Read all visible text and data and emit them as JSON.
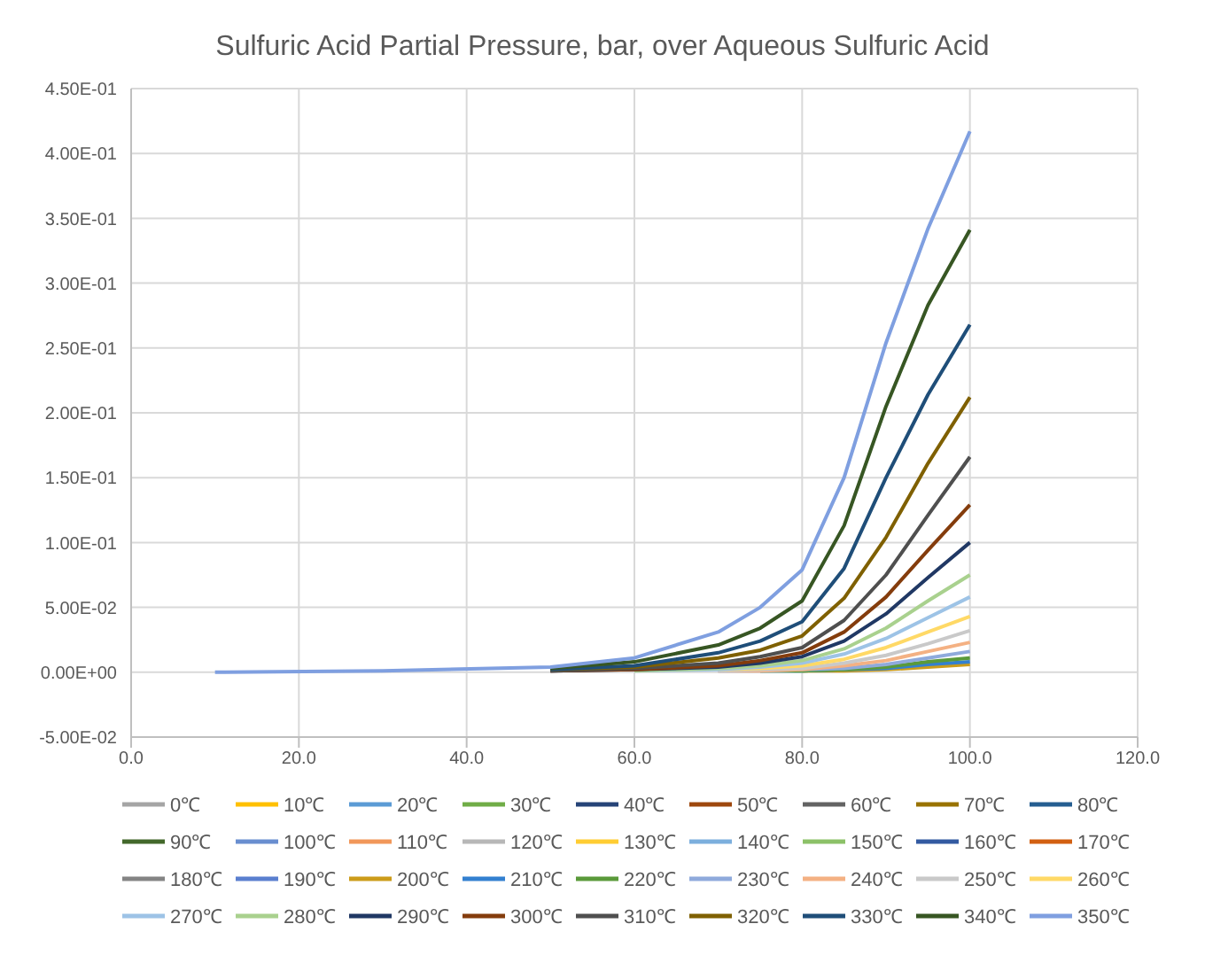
{
  "chart_data": {
    "type": "line",
    "title": "Sulfuric Acid Partial Pressure, bar, over Aqueous Sulfuric Acid",
    "x": [
      10,
      30,
      50,
      60,
      70,
      75,
      80,
      85,
      90,
      95,
      100
    ],
    "xlim": [
      0,
      120
    ],
    "xticks": [
      {
        "value": 0,
        "label": "0.0"
      },
      {
        "value": 20,
        "label": "20.0"
      },
      {
        "value": 40,
        "label": "40.0"
      },
      {
        "value": 60,
        "label": "60.0"
      },
      {
        "value": 80,
        "label": "80.0"
      },
      {
        "value": 100,
        "label": "100.0"
      },
      {
        "value": 120,
        "label": "120.0"
      }
    ],
    "ylim": [
      -0.05,
      0.45
    ],
    "yticks": [
      {
        "value": -0.05,
        "label": "-5.00E-02"
      },
      {
        "value": 0,
        "label": "0.00E+00"
      },
      {
        "value": 0.05,
        "label": "5.00E-02"
      },
      {
        "value": 0.1,
        "label": "1.00E-01"
      },
      {
        "value": 0.15,
        "label": "1.50E-01"
      },
      {
        "value": 0.2,
        "label": "2.00E-01"
      },
      {
        "value": 0.25,
        "label": "2.50E-01"
      },
      {
        "value": 0.3,
        "label": "3.00E-01"
      },
      {
        "value": 0.35,
        "label": "3.50E-01"
      },
      {
        "value": 0.4,
        "label": "4.00E-01"
      },
      {
        "value": 0.45,
        "label": "4.50E-01"
      }
    ],
    "grid": true,
    "legend": "bottom",
    "marker": "none",
    "line_style": "solid",
    "series": [
      {
        "name": "0℃",
        "color": "#a5a5a5",
        "values": [
          null,
          null,
          null,
          null,
          null,
          null,
          null,
          null,
          null,
          null,
          null
        ]
      },
      {
        "name": "10℃",
        "color": "#ffc000",
        "values": [
          null,
          null,
          null,
          null,
          null,
          null,
          null,
          null,
          null,
          null,
          null
        ]
      },
      {
        "name": "20℃",
        "color": "#5b9bd5",
        "values": [
          null,
          null,
          null,
          null,
          null,
          null,
          null,
          null,
          null,
          null,
          null
        ]
      },
      {
        "name": "30℃",
        "color": "#70ad47",
        "values": [
          null,
          null,
          null,
          null,
          null,
          null,
          null,
          null,
          null,
          null,
          null
        ]
      },
      {
        "name": "40℃",
        "color": "#264478",
        "values": [
          null,
          null,
          null,
          null,
          null,
          null,
          null,
          null,
          null,
          null,
          null
        ]
      },
      {
        "name": "50℃",
        "color": "#9e480e",
        "values": [
          null,
          null,
          null,
          null,
          null,
          null,
          null,
          null,
          null,
          null,
          null
        ]
      },
      {
        "name": "60℃",
        "color": "#636363",
        "values": [
          null,
          null,
          null,
          null,
          null,
          null,
          null,
          null,
          null,
          null,
          null
        ]
      },
      {
        "name": "70℃",
        "color": "#997300",
        "values": [
          null,
          null,
          null,
          null,
          null,
          null,
          null,
          null,
          null,
          null,
          null
        ]
      },
      {
        "name": "80℃",
        "color": "#255e91",
        "values": [
          null,
          null,
          null,
          null,
          null,
          null,
          null,
          null,
          null,
          null,
          null
        ]
      },
      {
        "name": "90℃",
        "color": "#43682b",
        "values": [
          null,
          null,
          null,
          null,
          null,
          null,
          null,
          null,
          null,
          null,
          null
        ]
      },
      {
        "name": "100℃",
        "color": "#698ed0",
        "values": [
          null,
          null,
          null,
          null,
          null,
          null,
          null,
          null,
          null,
          null,
          null
        ]
      },
      {
        "name": "110℃",
        "color": "#f1975a",
        "values": [
          null,
          null,
          null,
          null,
          null,
          null,
          null,
          null,
          null,
          null,
          null
        ]
      },
      {
        "name": "120℃",
        "color": "#b7b7b7",
        "values": [
          null,
          null,
          null,
          null,
          null,
          null,
          null,
          null,
          null,
          null,
          null
        ]
      },
      {
        "name": "130℃",
        "color": "#ffcd33",
        "values": [
          null,
          null,
          null,
          null,
          null,
          null,
          null,
          null,
          null,
          null,
          null
        ]
      },
      {
        "name": "140℃",
        "color": "#7cafdd",
        "values": [
          null,
          null,
          null,
          null,
          null,
          null,
          null,
          null,
          null,
          null,
          null
        ]
      },
      {
        "name": "150℃",
        "color": "#8cc168",
        "values": [
          null,
          null,
          null,
          null,
          null,
          null,
          null,
          null,
          null,
          null,
          null
        ]
      },
      {
        "name": "160℃",
        "color": "#335aa1",
        "values": [
          null,
          null,
          null,
          null,
          null,
          null,
          null,
          null,
          null,
          null,
          null
        ]
      },
      {
        "name": "170℃",
        "color": "#d26012",
        "values": [
          null,
          null,
          null,
          null,
          null,
          null,
          null,
          null,
          null,
          null,
          null
        ]
      },
      {
        "name": "180℃",
        "color": "#848484",
        "values": [
          null,
          null,
          null,
          null,
          null,
          null,
          null,
          null,
          null,
          null,
          null
        ]
      },
      {
        "name": "190℃",
        "color": "#5a7fcf",
        "values": [
          null,
          null,
          null,
          null,
          null,
          null,
          null,
          null,
          null,
          null,
          null
        ]
      },
      {
        "name": "200℃",
        "color": "#cc9c1a",
        "values": [
          null,
          null,
          null,
          null,
          null,
          null,
          0.001,
          0.001,
          0.002,
          0.004,
          0.006
        ]
      },
      {
        "name": "210℃",
        "color": "#3380d0",
        "values": [
          null,
          null,
          null,
          null,
          null,
          0.001,
          0.001,
          0.002,
          0.003,
          0.006,
          0.008
        ]
      },
      {
        "name": "220℃",
        "color": "#5a9a3a",
        "values": [
          null,
          null,
          null,
          null,
          null,
          0.001,
          0.001,
          0.002,
          0.004,
          0.008,
          0.011
        ]
      },
      {
        "name": "230℃",
        "color": "#8faadc",
        "values": [
          null,
          null,
          null,
          null,
          0.001,
          0.001,
          0.002,
          0.003,
          0.006,
          0.011,
          0.016
        ]
      },
      {
        "name": "240℃",
        "color": "#f4b183",
        "values": [
          null,
          null,
          null,
          null,
          0.001,
          0.001,
          0.002,
          0.005,
          0.009,
          0.016,
          0.023
        ]
      },
      {
        "name": "250℃",
        "color": "#c9c9c9",
        "values": [
          null,
          null,
          null,
          null,
          0.001,
          0.002,
          0.003,
          0.007,
          0.013,
          0.022,
          0.032
        ]
      },
      {
        "name": "260℃",
        "color": "#ffd966",
        "values": [
          null,
          null,
          null,
          null,
          0.002,
          0.003,
          0.005,
          0.01,
          0.019,
          0.031,
          0.043
        ]
      },
      {
        "name": "270℃",
        "color": "#9dc3e6",
        "values": [
          null,
          null,
          null,
          0.001,
          0.002,
          0.004,
          0.007,
          0.014,
          0.026,
          0.042,
          0.058
        ]
      },
      {
        "name": "280℃",
        "color": "#a9d18e",
        "values": [
          null,
          null,
          null,
          0.001,
          0.003,
          0.005,
          0.009,
          0.018,
          0.034,
          0.055,
          0.075
        ]
      },
      {
        "name": "290℃",
        "color": "#203864",
        "values": [
          null,
          null,
          0.001,
          0.002,
          0.004,
          0.007,
          0.012,
          0.024,
          0.045,
          0.073,
          0.1
        ]
      },
      {
        "name": "300℃",
        "color": "#843c0c",
        "values": [
          null,
          null,
          0.001,
          0.002,
          0.005,
          0.009,
          0.015,
          0.031,
          0.058,
          0.094,
          0.129
        ]
      },
      {
        "name": "310℃",
        "color": "#4f4f4f",
        "values": [
          null,
          null,
          0.001,
          0.003,
          0.007,
          0.012,
          0.019,
          0.04,
          0.075,
          0.121,
          0.166
        ]
      },
      {
        "name": "320℃",
        "color": "#7f6000",
        "values": [
          null,
          null,
          0.002,
          0.004,
          0.011,
          0.017,
          0.028,
          0.057,
          0.104,
          0.161,
          0.212
        ]
      },
      {
        "name": "330℃",
        "color": "#1f4e79",
        "values": [
          null,
          null,
          0.002,
          0.005,
          0.015,
          0.024,
          0.039,
          0.08,
          0.15,
          0.214,
          0.268
        ]
      },
      {
        "name": "340℃",
        "color": "#375623",
        "values": [
          null,
          null,
          0.003,
          0.008,
          0.021,
          0.034,
          0.055,
          0.113,
          0.205,
          0.283,
          0.341
        ]
      },
      {
        "name": "350℃",
        "color": "#7f9fe0",
        "values": [
          0,
          0.001,
          0.004,
          0.011,
          0.031,
          0.05,
          0.079,
          0.15,
          0.254,
          0.342,
          0.417
        ]
      }
    ]
  }
}
